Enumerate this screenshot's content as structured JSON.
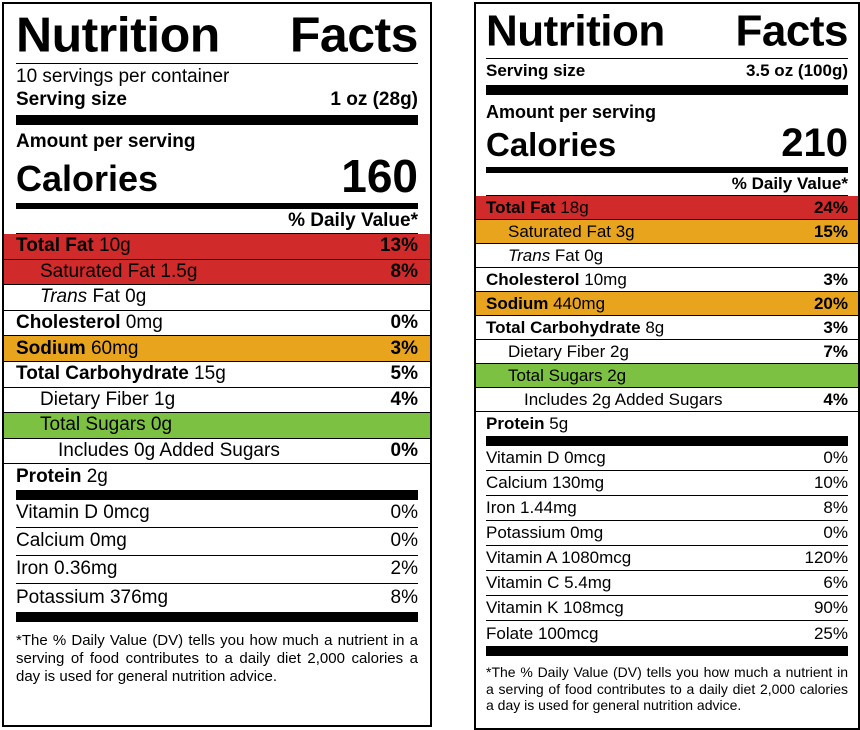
{
  "label_a": {
    "title_word1": "Nutrition",
    "title_word2": "Facts",
    "servings_per_container": "10 servings per container",
    "serving_size_label": "Serving size",
    "serving_size_value": "1 oz (28g)",
    "amount_per_serving": "Amount per serving",
    "calories_label": "Calories",
    "calories_value": "160",
    "daily_value_header": "% Daily Value*",
    "nutrients": [
      {
        "bold": "Total Fat",
        "rest": " 10g",
        "pct": "13%",
        "highlight": "red"
      },
      {
        "pre": "Saturated Fat 1.5g",
        "pct": "8%",
        "highlight": "red"
      },
      {
        "italic": "Trans",
        "rest": " Fat 0g",
        "pct": ""
      },
      {
        "bold": "Cholesterol",
        "rest": " 0mg",
        "pct": "0%"
      },
      {
        "bold": "Sodium",
        "rest": " 60mg",
        "pct": "3%",
        "highlight": "orange"
      },
      {
        "bold": "Total Carbohydrate",
        "rest": " 15g",
        "pct": "5%"
      },
      {
        "pre": "Dietary Fiber 1g",
        "pct": "4%"
      },
      {
        "pre": "Total Sugars 0g",
        "pct": "",
        "highlight": "green"
      },
      {
        "pre": "Includes 0g Added Sugars",
        "pct": "0%"
      },
      {
        "bold": "Protein",
        "rest": " 2g",
        "pct": ""
      }
    ],
    "vitamins": [
      {
        "name": "Vitamin D 0mcg",
        "pct": "0%"
      },
      {
        "name": "Calcium 0mg",
        "pct": "0%"
      },
      {
        "name": "Iron 0.36mg",
        "pct": "2%"
      },
      {
        "name": "Potassium 376mg",
        "pct": "8%"
      }
    ],
    "footnote": "*The % Daily Value (DV) tells you how much a nutrient in a serving of food contributes to a daily diet 2,000 calories a day is used for general nutrition advice."
  },
  "label_b": {
    "title_word1": "Nutrition",
    "title_word2": "Facts",
    "serving_size_label": "Serving size",
    "serving_size_value": "3.5 oz (100g)",
    "amount_per_serving": "Amount per serving",
    "calories_label": "Calories",
    "calories_value": "210",
    "daily_value_header": "% Daily Value*",
    "nutrients": [
      {
        "bold": "Total Fat",
        "rest": " 18g",
        "pct": "24%",
        "highlight": "red"
      },
      {
        "pre": "Saturated Fat 3g",
        "pct": "15%",
        "highlight": "orange"
      },
      {
        "italic": "Trans",
        "rest": " Fat 0g",
        "pct": ""
      },
      {
        "bold": "Cholesterol",
        "rest": " 10mg",
        "pct": "3%"
      },
      {
        "bold": "Sodium",
        "rest": " 440mg",
        "pct": "20%",
        "highlight": "orange"
      },
      {
        "bold": "Total Carbohydrate",
        "rest": " 8g",
        "pct": "3%"
      },
      {
        "pre": "Dietary Fiber 2g",
        "pct": "7%"
      },
      {
        "pre": "Total Sugars 2g",
        "pct": "",
        "highlight": "green"
      },
      {
        "pre": "Includes 2g Added Sugars",
        "pct": "4%"
      },
      {
        "bold": "Protein",
        "rest": " 5g",
        "pct": ""
      }
    ],
    "vitamins": [
      {
        "name": "Vitamin D 0mcg",
        "pct": "0%"
      },
      {
        "name": "Calcium 130mg",
        "pct": "10%"
      },
      {
        "name": "Iron 1.44mg",
        "pct": "8%"
      },
      {
        "name": "Potassium 0mg",
        "pct": "0%"
      },
      {
        "name": "Vitamin A 1080mcg",
        "pct": "120%"
      },
      {
        "name": "Vitamin C 5.4mg",
        "pct": "6%"
      },
      {
        "name": "Vitamin K 108mcg",
        "pct": "90%"
      },
      {
        "name": "Folate 100mcg",
        "pct": "25%"
      }
    ],
    "footnote": "*The % Daily Value (DV) tells you how much a nutrient in a serving of food contributes to a daily diet 2,000 calories a day is used for general nutrition advice."
  },
  "colors": {
    "red": "#d02a2a",
    "orange": "#e8a41c",
    "green": "#7cc142"
  }
}
